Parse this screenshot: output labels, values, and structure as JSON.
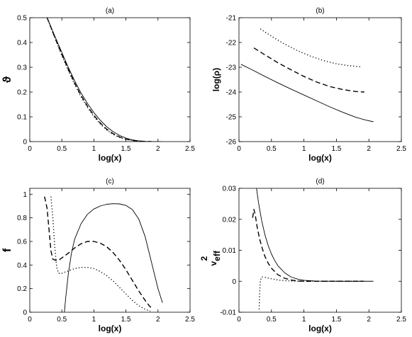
{
  "chart_data": [
    {
      "id": "a",
      "type": "line",
      "title": "(a)",
      "xlabel": "log(x)",
      "ylabel": "ϑ",
      "xlim": [
        0,
        2.5
      ],
      "ylim": [
        0,
        0.5
      ],
      "xticks": [
        "0",
        "0.5",
        "1",
        "1.5",
        "2",
        "2.5"
      ],
      "yticks": [
        "0",
        "0.1",
        "0.2",
        "0.3",
        "0.4",
        "0.5"
      ],
      "series": [
        {
          "style": "solid",
          "points": [
            [
              0.27,
              0.5
            ],
            [
              0.4,
              0.42
            ],
            [
              0.5,
              0.36
            ],
            [
              0.6,
              0.3
            ],
            [
              0.7,
              0.245
            ],
            [
              0.8,
              0.196
            ],
            [
              0.9,
              0.154
            ],
            [
              1.0,
              0.117
            ],
            [
              1.1,
              0.086
            ],
            [
              1.2,
              0.06
            ],
            [
              1.3,
              0.04
            ],
            [
              1.4,
              0.025
            ],
            [
              1.5,
              0.014
            ],
            [
              1.6,
              0.007
            ],
            [
              1.7,
              0.003
            ],
            [
              1.8,
              0.001
            ],
            [
              1.9,
              0.0003
            ],
            [
              2.05,
              0
            ]
          ]
        },
        {
          "style": "dashed",
          "points": [
            [
              0.27,
              0.5
            ],
            [
              0.4,
              0.415
            ],
            [
              0.5,
              0.352
            ],
            [
              0.6,
              0.292
            ],
            [
              0.7,
              0.236
            ],
            [
              0.8,
              0.186
            ],
            [
              0.9,
              0.143
            ],
            [
              1.0,
              0.106
            ],
            [
              1.1,
              0.075
            ],
            [
              1.2,
              0.05
            ],
            [
              1.3,
              0.032
            ],
            [
              1.4,
              0.019
            ],
            [
              1.5,
              0.01
            ],
            [
              1.6,
              0.005
            ],
            [
              1.7,
              0.002
            ],
            [
              1.8,
              0.0007
            ],
            [
              1.9,
              0
            ]
          ]
        },
        {
          "style": "dotted",
          "points": [
            [
              0.27,
              0.5
            ],
            [
              0.4,
              0.412
            ],
            [
              0.5,
              0.348
            ],
            [
              0.6,
              0.287
            ],
            [
              0.7,
              0.231
            ],
            [
              0.8,
              0.181
            ],
            [
              0.9,
              0.138
            ],
            [
              1.0,
              0.101
            ],
            [
              1.1,
              0.071
            ],
            [
              1.2,
              0.047
            ],
            [
              1.3,
              0.029
            ],
            [
              1.4,
              0.017
            ],
            [
              1.5,
              0.009
            ],
            [
              1.6,
              0.004
            ],
            [
              1.7,
              0.0015
            ],
            [
              1.8,
              0
            ]
          ]
        }
      ]
    },
    {
      "id": "b",
      "type": "line",
      "title": "(b)",
      "xlabel": "log(x)",
      "ylabel": "log(ρ)",
      "xlim": [
        0,
        2.5
      ],
      "ylim": [
        -26,
        -21
      ],
      "xticks": [
        "0",
        "0.5",
        "1",
        "1.5",
        "2",
        "2.5"
      ],
      "yticks": [
        "-26",
        "-25",
        "-24",
        "-23",
        "-22",
        "-21"
      ],
      "series": [
        {
          "style": "solid",
          "points": [
            [
              0.03,
              -22.88
            ],
            [
              0.2,
              -23.1
            ],
            [
              0.4,
              -23.37
            ],
            [
              0.6,
              -23.63
            ],
            [
              0.8,
              -23.88
            ],
            [
              1.0,
              -24.12
            ],
            [
              1.2,
              -24.36
            ],
            [
              1.4,
              -24.6
            ],
            [
              1.6,
              -24.82
            ],
            [
              1.8,
              -25.02
            ],
            [
              1.95,
              -25.13
            ],
            [
              2.07,
              -25.2
            ]
          ]
        },
        {
          "style": "dashed",
          "points": [
            [
              0.23,
              -22.22
            ],
            [
              0.4,
              -22.5
            ],
            [
              0.6,
              -22.82
            ],
            [
              0.8,
              -23.1
            ],
            [
              1.0,
              -23.37
            ],
            [
              1.2,
              -23.6
            ],
            [
              1.4,
              -23.78
            ],
            [
              1.6,
              -23.9
            ],
            [
              1.8,
              -23.98
            ],
            [
              1.93,
              -24.0
            ]
          ]
        },
        {
          "style": "dotted",
          "points": [
            [
              0.33,
              -21.45
            ],
            [
              0.5,
              -21.75
            ],
            [
              0.7,
              -22.06
            ],
            [
              0.9,
              -22.33
            ],
            [
              1.1,
              -22.55
            ],
            [
              1.3,
              -22.73
            ],
            [
              1.5,
              -22.86
            ],
            [
              1.7,
              -22.94
            ],
            [
              1.88,
              -22.98
            ]
          ]
        }
      ]
    },
    {
      "id": "c",
      "type": "line",
      "title": "(c)",
      "xlabel": "log(x)",
      "ylabel": "f",
      "xlim": [
        0,
        2.5
      ],
      "ylim": [
        0,
        1.05
      ],
      "xticks": [
        "0",
        "0.5",
        "1",
        "1.5",
        "2",
        "2.5"
      ],
      "yticks": [
        "0",
        "0.2",
        "0.4",
        "0.6",
        "0.8",
        "1"
      ],
      "series": [
        {
          "style": "solid",
          "points": [
            [
              0.54,
              0
            ],
            [
              0.56,
              0.12
            ],
            [
              0.6,
              0.32
            ],
            [
              0.65,
              0.5
            ],
            [
              0.7,
              0.62
            ],
            [
              0.8,
              0.75
            ],
            [
              0.9,
              0.83
            ],
            [
              1.0,
              0.875
            ],
            [
              1.1,
              0.9
            ],
            [
              1.2,
              0.915
            ],
            [
              1.3,
              0.92
            ],
            [
              1.4,
              0.918
            ],
            [
              1.5,
              0.905
            ],
            [
              1.6,
              0.87
            ],
            [
              1.7,
              0.79
            ],
            [
              1.8,
              0.64
            ],
            [
              1.9,
              0.42
            ],
            [
              2.0,
              0.2
            ],
            [
              2.07,
              0.08
            ]
          ]
        },
        {
          "style": "dashed",
          "points": [
            [
              0.23,
              0.98
            ],
            [
              0.27,
              0.88
            ],
            [
              0.3,
              0.7
            ],
            [
              0.33,
              0.52
            ],
            [
              0.36,
              0.45
            ],
            [
              0.4,
              0.44
            ],
            [
              0.45,
              0.44
            ],
            [
              0.5,
              0.46
            ],
            [
              0.6,
              0.5
            ],
            [
              0.7,
              0.545
            ],
            [
              0.8,
              0.58
            ],
            [
              0.9,
              0.6
            ],
            [
              1.0,
              0.6
            ],
            [
              1.1,
              0.585
            ],
            [
              1.2,
              0.555
            ],
            [
              1.3,
              0.505
            ],
            [
              1.4,
              0.44
            ],
            [
              1.5,
              0.36
            ],
            [
              1.6,
              0.27
            ],
            [
              1.7,
              0.18
            ],
            [
              1.8,
              0.1
            ],
            [
              1.87,
              0.05
            ],
            [
              1.92,
              0.03
            ]
          ]
        },
        {
          "style": "dotted",
          "points": [
            [
              0.33,
              0.98
            ],
            [
              0.36,
              0.8
            ],
            [
              0.39,
              0.55
            ],
            [
              0.42,
              0.38
            ],
            [
              0.45,
              0.33
            ],
            [
              0.5,
              0.33
            ],
            [
              0.6,
              0.35
            ],
            [
              0.7,
              0.37
            ],
            [
              0.8,
              0.38
            ],
            [
              0.9,
              0.38
            ],
            [
              1.0,
              0.37
            ],
            [
              1.1,
              0.345
            ],
            [
              1.2,
              0.31
            ],
            [
              1.3,
              0.265
            ],
            [
              1.4,
              0.21
            ],
            [
              1.5,
              0.155
            ],
            [
              1.6,
              0.1
            ],
            [
              1.7,
              0.055
            ],
            [
              1.8,
              0.025
            ],
            [
              1.88,
              0.01
            ]
          ]
        }
      ]
    },
    {
      "id": "d",
      "type": "line",
      "title": "(d)",
      "xlabel": "log(x)",
      "ylabel": "v",
      "ylabel_sup": "2",
      "ylabel_sub": "eff",
      "xlim": [
        0,
        2.5
      ],
      "ylim": [
        -0.01,
        0.03
      ],
      "xticks": [
        "0",
        "0.5",
        "1",
        "1.5",
        "2",
        "2.5"
      ],
      "yticks": [
        "-0.01",
        "0",
        "0.01",
        "0.02",
        "0.03"
      ],
      "series": [
        {
          "style": "solid",
          "points": [
            [
              0.27,
              0.03
            ],
            [
              0.3,
              0.0255
            ],
            [
              0.35,
              0.0195
            ],
            [
              0.4,
              0.015
            ],
            [
              0.45,
              0.0115
            ],
            [
              0.5,
              0.0088
            ],
            [
              0.55,
              0.0067
            ],
            [
              0.6,
              0.005
            ],
            [
              0.7,
              0.0028
            ],
            [
              0.8,
              0.0014
            ],
            [
              0.9,
              0.0007
            ],
            [
              1.0,
              0.0003
            ],
            [
              1.2,
              5e-05
            ],
            [
              1.5,
              0
            ],
            [
              2.07,
              0
            ]
          ]
        },
        {
          "style": "dashed",
          "points": [
            [
              0.21,
              0.0205
            ],
            [
              0.23,
              0.0232
            ],
            [
              0.25,
              0.0215
            ],
            [
              0.28,
              0.0175
            ],
            [
              0.32,
              0.0135
            ],
            [
              0.36,
              0.0105
            ],
            [
              0.4,
              0.008
            ],
            [
              0.45,
              0.0058
            ],
            [
              0.5,
              0.0042
            ],
            [
              0.6,
              0.0021
            ],
            [
              0.7,
              0.001
            ],
            [
              0.8,
              0.0004
            ],
            [
              0.9,
              0.0001
            ],
            [
              1.0,
              0
            ],
            [
              1.92,
              0
            ]
          ]
        },
        {
          "style": "dotted",
          "points": [
            [
              0.31,
              -0.009
            ],
            [
              0.32,
              -0.003
            ],
            [
              0.33,
              0.0003
            ],
            [
              0.35,
              0.0014
            ],
            [
              0.4,
              0.0013
            ],
            [
              0.5,
              0.0008
            ],
            [
              0.6,
              0.0004
            ],
            [
              0.7,
              0.0002
            ],
            [
              0.8,
              0.0001
            ],
            [
              0.9,
              0
            ],
            [
              1.88,
              0
            ]
          ]
        }
      ]
    }
  ]
}
